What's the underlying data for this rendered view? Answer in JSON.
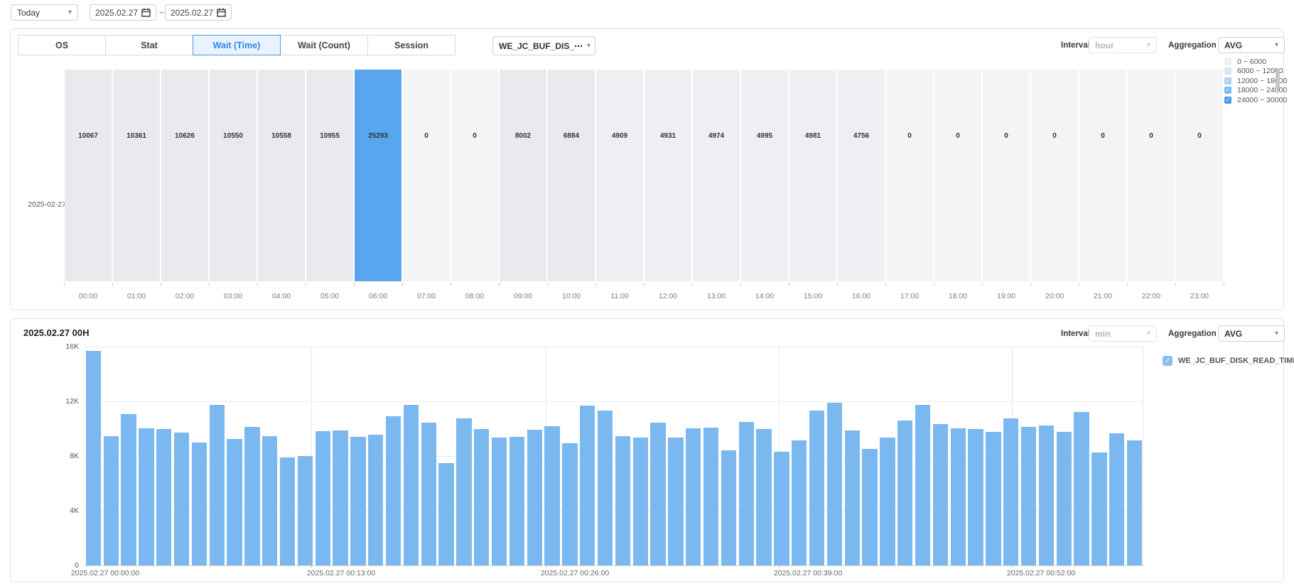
{
  "toolbar": {
    "range_preset": "Today",
    "date_from": "2025.02.27",
    "date_separator": "~",
    "date_to": "2025.02.27"
  },
  "panel1": {
    "tabs": [
      {
        "label": "OS",
        "active": false
      },
      {
        "label": "Stat",
        "active": false
      },
      {
        "label": "Wait (Time)",
        "active": true
      },
      {
        "label": "Wait (Count)",
        "active": false
      },
      {
        "label": "Session",
        "active": false
      }
    ],
    "metric_select": "WE_JC_BUF_DIS_⋯",
    "interval_label": "Interval",
    "interval_value": "hour",
    "aggregation_label": "Aggregation",
    "aggregation_value": "AVG",
    "legend": [
      {
        "label": "0 ~ 6000",
        "color": "#e9eff6",
        "checked": true
      },
      {
        "label": "6000 ~ 12000",
        "color": "#d4e5f6",
        "checked": true
      },
      {
        "label": "12000 ~ 18000",
        "color": "#abd0f1",
        "checked": true
      },
      {
        "label": "18000 ~ 24000",
        "color": "#7cb9ee",
        "checked": true
      },
      {
        "label": "24000 ~ 30000",
        "color": "#4a9ce9",
        "checked": true
      }
    ],
    "chart_data": {
      "type": "heatmap",
      "row_label": "2025-02-27",
      "columns": [
        "00:00",
        "01:00",
        "02:00",
        "03:00",
        "04:00",
        "05:00",
        "06:00",
        "07:00",
        "08:00",
        "09:00",
        "10:00",
        "11:00",
        "12:00",
        "13:00",
        "14:00",
        "15:00",
        "16:00",
        "17:00",
        "18:00",
        "19:00",
        "20:00",
        "21:00",
        "22:00",
        "23:00"
      ],
      "values": [
        10067,
        10361,
        10626,
        10550,
        10558,
        10955,
        25293,
        0,
        0,
        8002,
        6884,
        4909,
        4931,
        4974,
        4995,
        4981,
        4756,
        0,
        0,
        0,
        0,
        0,
        0,
        0
      ],
      "highlight_color": "#58a6ee",
      "cell_colors": {
        "zero": "#f3f4f6",
        "low": "#edeff2",
        "mid": "#e8eaed"
      }
    }
  },
  "panel2": {
    "title": "2025.02.27 00H",
    "interval_label": "Interval",
    "interval_value": "min",
    "aggregation_label": "Aggregation",
    "aggregation_value": "AVG",
    "legend_series": "WE_JC_BUF_DISK_READ_TIME",
    "chart_data": {
      "type": "bar",
      "series_name": "WE_JC_BUF_DISK_READ_TIME",
      "bar_color": "#7cb8f0",
      "ylim": [
        0,
        16000
      ],
      "y_tick_labels": [
        "16K",
        "12K",
        "8K",
        "4K",
        "0"
      ],
      "x_tick_labels": [
        "2025.02.27 00:00:00",
        "2025.02.27 00:13:00",
        "2025.02.27 00:26:00",
        "2025.02.27 00:39:00",
        "2025.02.27 00:52:00"
      ],
      "values": [
        15700,
        9455,
        11080,
        10040,
        9975,
        9700,
        9000,
        11725,
        9260,
        10130,
        9470,
        7880,
        8000,
        9820,
        9870,
        9390,
        9560,
        10910,
        11745,
        10420,
        7490,
        10760,
        9995,
        9365,
        9400,
        9945,
        10200,
        8925,
        11680,
        11300,
        9430,
        9350,
        10420,
        9365,
        10045,
        10080,
        8410,
        10500,
        9995,
        8290,
        9165,
        11350,
        11880,
        9855,
        8515,
        9340,
        10575,
        11760,
        10350,
        10025,
        9990,
        9770,
        10765,
        10110,
        10230,
        9770,
        11210,
        8260,
        9650,
        9165
      ]
    }
  }
}
